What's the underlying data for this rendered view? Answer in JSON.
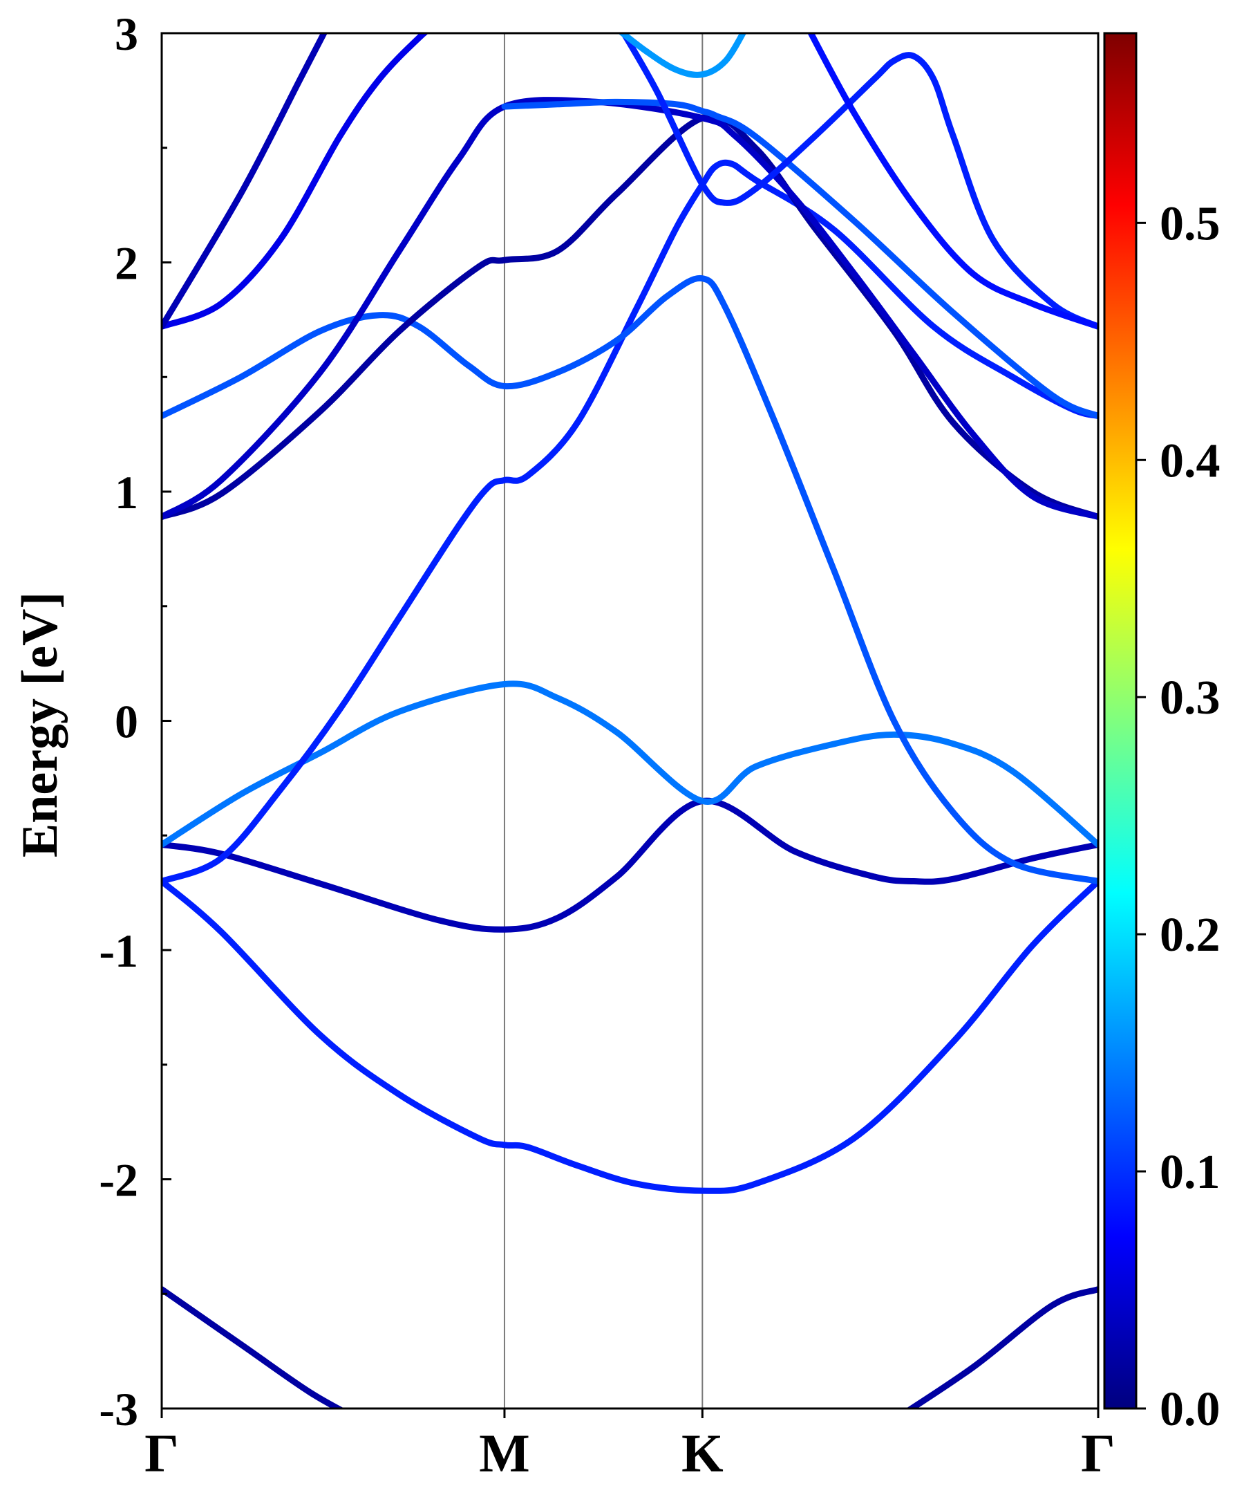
{
  "chart_data": {
    "type": "line",
    "title": "",
    "xlabel": "",
    "ylabel": "Energy [eV]",
    "ylim": [
      -3,
      3
    ],
    "yticks": [
      3,
      2,
      1,
      0,
      -1,
      -2,
      -3
    ],
    "ytick_labels": [
      "3",
      "2",
      "1",
      "0",
      "-1",
      "-2",
      "-3"
    ],
    "kpath_positions": [
      0,
      1.732,
      2.732,
      4.732
    ],
    "kpath_labels": [
      "Γ",
      "M",
      "K",
      "Γ"
    ],
    "colorbar": {
      "label": "",
      "range": [
        0.0,
        0.58
      ],
      "ticks": [
        0.0,
        0.1,
        0.2,
        0.3,
        0.4,
        0.5
      ],
      "tick_labels": [
        "0.0",
        "0.1",
        "0.2",
        "0.3",
        "0.4",
        "0.5"
      ],
      "colormap": "jet",
      "stops": [
        "#00007f",
        "#0000ff",
        "#007fff",
        "#00ffff",
        "#7fff7f",
        "#ffff00",
        "#ff7f00",
        "#ff0000",
        "#7f0000"
      ]
    },
    "series": [
      {
        "color_value": 0.02,
        "points": [
          [
            0,
            -2.48
          ],
          [
            0.4,
            -2.72
          ],
          [
            0.75,
            -2.93
          ],
          [
            1.0,
            -3.05
          ]
        ]
      },
      {
        "color_value": 0.02,
        "points": [
          [
            3.7,
            -3.05
          ],
          [
            4.1,
            -2.82
          ],
          [
            4.5,
            -2.55
          ],
          [
            4.732,
            -2.48
          ]
        ]
      },
      {
        "color_value": 0.09,
        "points": [
          [
            0,
            -0.7
          ],
          [
            0.3,
            -0.92
          ],
          [
            0.8,
            -1.37
          ],
          [
            1.2,
            -1.63
          ],
          [
            1.6,
            -1.82
          ],
          [
            1.732,
            -1.85
          ],
          [
            1.85,
            -1.86
          ],
          [
            2.1,
            -1.94
          ],
          [
            2.4,
            -2.02
          ],
          [
            2.732,
            -2.05
          ],
          [
            3.0,
            -2.02
          ],
          [
            3.5,
            -1.82
          ],
          [
            4.0,
            -1.4
          ],
          [
            4.4,
            -0.98
          ],
          [
            4.732,
            -0.7
          ]
        ]
      },
      {
        "color_value": 0.03,
        "points": [
          [
            0,
            -0.54
          ],
          [
            0.3,
            -0.58
          ],
          [
            0.8,
            -0.71
          ],
          [
            1.4,
            -0.87
          ],
          [
            1.732,
            -0.91
          ],
          [
            2.0,
            -0.86
          ],
          [
            2.3,
            -0.68
          ],
          [
            2.732,
            -0.35
          ],
          [
            3.2,
            -0.57
          ],
          [
            3.6,
            -0.68
          ],
          [
            3.8,
            -0.7
          ],
          [
            4.0,
            -0.69
          ],
          [
            4.4,
            -0.6
          ],
          [
            4.732,
            -0.54
          ]
        ]
      },
      {
        "color_value": 0.14,
        "points": [
          [
            0,
            -0.54
          ],
          [
            0.4,
            -0.32
          ],
          [
            0.8,
            -0.14
          ],
          [
            1.2,
            0.04
          ],
          [
            1.732,
            0.16
          ],
          [
            2.0,
            0.1
          ],
          [
            2.3,
            -0.05
          ],
          [
            2.732,
            -0.35
          ],
          [
            3.0,
            -0.2
          ],
          [
            3.4,
            -0.1
          ],
          [
            3.7,
            -0.06
          ],
          [
            4.0,
            -0.1
          ],
          [
            4.3,
            -0.22
          ],
          [
            4.732,
            -0.54
          ]
        ]
      },
      {
        "color_value": 0.09,
        "points": [
          [
            0,
            -0.7
          ],
          [
            0.3,
            -0.6
          ],
          [
            0.6,
            -0.3
          ],
          [
            0.9,
            0.05
          ],
          [
            1.2,
            0.45
          ],
          [
            1.5,
            0.85
          ],
          [
            1.65,
            1.02
          ],
          [
            1.732,
            1.05
          ],
          [
            1.85,
            1.07
          ],
          [
            2.1,
            1.3
          ],
          [
            2.4,
            1.8
          ],
          [
            2.6,
            2.15
          ],
          [
            2.732,
            2.34
          ],
          [
            2.8,
            2.42
          ],
          [
            2.88,
            2.43
          ],
          [
            3.0,
            2.36
          ],
          [
            3.4,
            2.14
          ],
          [
            3.9,
            1.72
          ],
          [
            4.3,
            1.5
          ],
          [
            4.6,
            1.36
          ],
          [
            4.732,
            1.33
          ]
        ]
      },
      {
        "color_value": 0.12,
        "points": [
          [
            0,
            1.33
          ],
          [
            0.4,
            1.5
          ],
          [
            0.8,
            1.7
          ],
          [
            1.1,
            1.77
          ],
          [
            1.3,
            1.72
          ],
          [
            1.55,
            1.55
          ],
          [
            1.732,
            1.46
          ],
          [
            2.0,
            1.52
          ],
          [
            2.3,
            1.66
          ],
          [
            2.55,
            1.85
          ],
          [
            2.732,
            1.93
          ],
          [
            2.85,
            1.8
          ],
          [
            3.1,
            1.3
          ],
          [
            3.4,
            0.65
          ],
          [
            3.7,
            0.0
          ],
          [
            4.0,
            -0.4
          ],
          [
            4.3,
            -0.62
          ],
          [
            4.732,
            -0.7
          ]
        ]
      },
      {
        "color_value": 0.02,
        "points": [
          [
            0,
            0.89
          ],
          [
            0.3,
            0.99
          ],
          [
            0.8,
            1.35
          ],
          [
            1.2,
            1.7
          ],
          [
            1.6,
            1.98
          ],
          [
            1.732,
            2.01
          ],
          [
            2.0,
            2.05
          ],
          [
            2.3,
            2.3
          ],
          [
            2.732,
            2.63
          ],
          [
            3.0,
            2.5
          ],
          [
            3.3,
            2.15
          ],
          [
            3.7,
            1.7
          ],
          [
            4.0,
            1.3
          ],
          [
            4.4,
            1.0
          ],
          [
            4.732,
            0.89
          ]
        ]
      },
      {
        "color_value": 0.04,
        "points": [
          [
            0,
            0.89
          ],
          [
            0.3,
            1.05
          ],
          [
            0.8,
            1.52
          ],
          [
            1.2,
            2.05
          ],
          [
            1.5,
            2.45
          ],
          [
            1.732,
            2.68
          ],
          [
            2.2,
            2.7
          ],
          [
            2.732,
            2.63
          ],
          [
            2.9,
            2.55
          ],
          [
            3.2,
            2.28
          ],
          [
            3.5,
            1.95
          ],
          [
            3.8,
            1.6
          ],
          [
            4.1,
            1.25
          ],
          [
            4.4,
            0.98
          ],
          [
            4.732,
            0.89
          ]
        ]
      },
      {
        "color_value": 0.06,
        "points": [
          [
            0,
            1.72
          ],
          [
            0.3,
            1.82
          ],
          [
            0.6,
            2.1
          ],
          [
            0.9,
            2.55
          ],
          [
            1.1,
            2.8
          ],
          [
            1.3,
            2.98
          ],
          [
            1.4,
            3.05
          ]
        ]
      },
      {
        "color_value": 0.12,
        "points": [
          [
            1.732,
            2.68
          ],
          [
            2.0,
            2.69
          ],
          [
            2.3,
            2.7
          ],
          [
            2.6,
            2.69
          ],
          [
            2.732,
            2.66
          ],
          [
            2.8,
            2.64
          ],
          [
            3.0,
            2.55
          ],
          [
            3.5,
            2.18
          ],
          [
            4.0,
            1.78
          ],
          [
            4.5,
            1.42
          ],
          [
            4.732,
            1.33
          ]
        ]
      },
      {
        "color_value": 0.03,
        "points": [
          [
            0,
            1.72
          ],
          [
            0.4,
            2.3
          ],
          [
            0.7,
            2.8
          ],
          [
            0.85,
            3.05
          ]
        ]
      },
      {
        "color_value": 0.09,
        "points": [
          [
            2.3,
            3.05
          ],
          [
            2.5,
            2.75
          ],
          [
            2.732,
            2.34
          ],
          [
            2.85,
            2.26
          ],
          [
            3.0,
            2.32
          ],
          [
            3.3,
            2.55
          ],
          [
            3.6,
            2.8
          ],
          [
            3.7,
            2.88
          ],
          [
            3.8,
            2.9
          ],
          [
            3.9,
            2.8
          ],
          [
            4.0,
            2.55
          ],
          [
            4.2,
            2.1
          ],
          [
            4.5,
            1.82
          ],
          [
            4.732,
            1.72
          ]
        ]
      },
      {
        "color_value": 0.08,
        "points": [
          [
            3.25,
            3.05
          ],
          [
            3.5,
            2.65
          ],
          [
            3.8,
            2.25
          ],
          [
            4.1,
            1.95
          ],
          [
            4.4,
            1.82
          ],
          [
            4.732,
            1.72
          ]
        ]
      },
      {
        "color_value": 0.16,
        "points": [
          [
            2.3,
            3.02
          ],
          [
            2.45,
            2.92
          ],
          [
            2.6,
            2.84
          ],
          [
            2.732,
            2.82
          ],
          [
            2.85,
            2.88
          ],
          [
            2.95,
            3.02
          ]
        ]
      }
    ]
  }
}
